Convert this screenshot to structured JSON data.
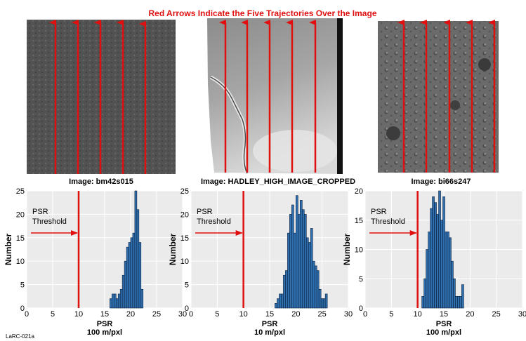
{
  "header": {
    "title": "Red Arrows Indicate the Five Trajectories Over the Image"
  },
  "footer": {
    "credit": "LaRC-021a"
  },
  "colors": {
    "title": "#e01010",
    "arrow": "#e01010",
    "bar_fill": "#2f6fae",
    "bar_stroke": "#0a1e3c",
    "plot_bg": "#ebebeb"
  },
  "panels": [
    {
      "image_caption": "Image: bm42s015",
      "image_style": "dark-even-lunar-surface"
    },
    {
      "image_caption": "Image: HADLEY_HIGH_IMAGE_CROPPED",
      "image_style": "bright-rille-lunar-surface"
    },
    {
      "image_caption": "Image: bi66s247",
      "image_style": "cratered-lunar-surface"
    }
  ],
  "chart_data": [
    {
      "type": "bar",
      "xlabel": "PSR",
      "xunit": "100 m/pxl",
      "ylabel": "Number",
      "xlim": [
        0,
        30
      ],
      "ylim": [
        0,
        25
      ],
      "xticks": [
        0,
        5,
        10,
        15,
        20,
        25,
        30
      ],
      "yticks": [
        0,
        5,
        10,
        15,
        20,
        25
      ],
      "grid": true,
      "threshold": {
        "x": 10,
        "label_line1": "PSR",
        "label_line2": "Threshold"
      },
      "bin_width": 0.4,
      "x": [
        16.0,
        16.4,
        16.8,
        17.2,
        17.6,
        18.0,
        18.4,
        18.8,
        19.2,
        19.6,
        20.0,
        20.4,
        20.8,
        21.2,
        21.6,
        22.0
      ],
      "values": [
        2,
        3,
        3,
        2,
        3,
        4,
        7,
        10,
        13,
        14,
        15,
        16,
        25,
        21,
        14,
        4
      ]
    },
    {
      "type": "bar",
      "xlabel": "PSR",
      "xunit": "10 m/pxl",
      "ylabel": "Number",
      "xlim": [
        0,
        30
      ],
      "ylim": [
        0,
        25
      ],
      "xticks": [
        0,
        5,
        10,
        15,
        20,
        25,
        30
      ],
      "yticks": [
        0,
        5,
        10,
        15,
        20,
        25
      ],
      "grid": true,
      "threshold": {
        "x": 10,
        "label_line1": "PSR",
        "label_line2": "Threshold"
      },
      "bin_width": 0.4,
      "x": [
        16.0,
        16.4,
        16.8,
        17.2,
        17.6,
        18.0,
        18.4,
        18.8,
        19.2,
        19.6,
        20.0,
        20.4,
        20.8,
        21.2,
        21.6,
        22.0,
        22.4,
        22.8,
        23.2,
        23.6,
        24.0,
        24.4,
        24.8,
        25.2,
        25.6
      ],
      "values": [
        1,
        2,
        3,
        3,
        7,
        8,
        16,
        20,
        22,
        16,
        24,
        20,
        23,
        21,
        20,
        15,
        14,
        17,
        10,
        9,
        8,
        4,
        2,
        2,
        3
      ]
    },
    {
      "type": "bar",
      "xlabel": "PSR",
      "xunit": "100 m/pxl",
      "ylabel": "Number",
      "xlim": [
        0,
        30
      ],
      "ylim": [
        0,
        20
      ],
      "xticks": [
        0,
        5,
        10,
        15,
        20,
        25,
        30
      ],
      "yticks": [
        0,
        5,
        10,
        15,
        20
      ],
      "grid": true,
      "threshold": {
        "x": 10,
        "label_line1": "PSR",
        "label_line2": "Threshold"
      },
      "bin_width": 0.4,
      "x": [
        10.8,
        11.2,
        11.6,
        12.0,
        12.4,
        12.8,
        13.2,
        13.6,
        14.0,
        14.4,
        14.8,
        15.2,
        15.6,
        16.0,
        16.4,
        16.8,
        17.2,
        17.6,
        18.0,
        18.4
      ],
      "values": [
        2,
        5,
        10,
        13,
        17,
        19,
        18,
        16,
        20,
        15,
        19,
        13,
        13,
        12,
        8,
        5,
        2,
        2,
        2,
        4
      ]
    }
  ]
}
